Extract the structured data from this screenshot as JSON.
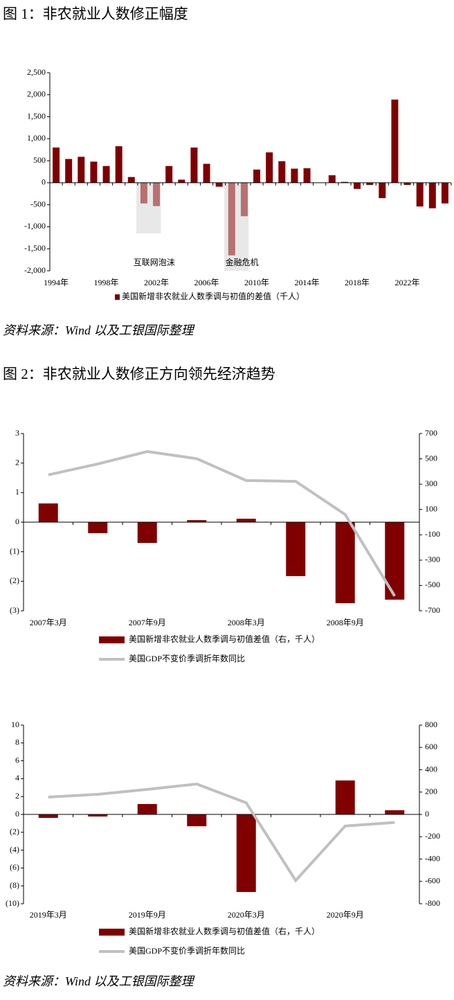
{
  "figure1_title": "图 1：非农就业人数修正幅度",
  "source1": "资料来源：Wind 以及工银国际整理",
  "figure2_title": "图 2：非农就业人数修正方向领先经济趋势",
  "source2": "资料来源：Wind 以及工银国际整理",
  "chart_data": [
    {
      "type": "bar",
      "categories": [
        "1994年",
        null,
        null,
        null,
        "1998年",
        null,
        null,
        null,
        "2002年",
        null,
        null,
        null,
        "2006年",
        null,
        null,
        null,
        "2010年",
        null,
        null,
        null,
        "2014年",
        null,
        null,
        null,
        "2018年",
        null,
        null,
        null,
        "2022年",
        null,
        null,
        null
      ],
      "series": [
        {
          "name": "美国新增非农就业人数季调与初值的差值（千人）",
          "color": "#7f0000",
          "colors": [
            "#7f0000",
            "#7f0000",
            "#7f0000",
            "#7f0000",
            "#7f0000",
            "#7f0000",
            "#7f0000",
            "#b87070",
            "#b87070",
            "#7f0000",
            "#7f0000",
            "#7f0000",
            "#7f0000",
            "#7f0000",
            "#b87070",
            "#b87070",
            "#7f0000",
            "#7f0000",
            "#7f0000",
            "#7f0000",
            "#7f0000",
            "#7f0000",
            "#7f0000",
            "#7f0000",
            "#7f0000",
            "#7f0000",
            "#7f0000",
            "#7f0000",
            "#7f0000",
            "#7f0000",
            "#7f0000",
            "#7f0000"
          ],
          "values": [
            800,
            540,
            590,
            480,
            380,
            830,
            130,
            -470,
            -530,
            380,
            70,
            800,
            430,
            -90,
            -1650,
            -760,
            300,
            690,
            490,
            320,
            330,
            0,
            170,
            20,
            -140,
            -50,
            -350,
            1890,
            -50,
            -540,
            -580,
            -470
          ]
        }
      ],
      "annotations": [
        {
          "text": "互联网泡沫",
          "y": -1150
        },
        {
          "text": "金融危机",
          "y": -2000
        }
      ],
      "ylim": [
        -2000,
        2500
      ],
      "yticks": [
        {
          "value": 2500,
          "label": "2,500"
        },
        {
          "value": 2000,
          "label": "2,000"
        },
        {
          "value": 1500,
          "label": "1,500"
        },
        {
          "value": 1000,
          "label": "1,000"
        },
        500,
        0,
        -500,
        {
          "value": -1000,
          "label": "-1,000"
        },
        {
          "value": -1500,
          "label": "-1,500"
        },
        {
          "value": -2000,
          "label": "-2,000"
        }
      ]
    },
    {
      "type": "combo",
      "categories": [
        "2007年3月",
        null,
        "2007年9月",
        null,
        "2008年3月",
        null,
        "2008年9月",
        null
      ],
      "series": [
        {
          "name": "美国新增非农就业人数季调与初值差值（右，千人）",
          "type": "bar",
          "axis": "y2",
          "color": "#800000",
          "values": [
            148,
            -87,
            -164,
            16,
            27,
            -426,
            -640,
            -612
          ]
        },
        {
          "name": "美国GDP不变价季调折年数同比",
          "type": "line",
          "color": "#c0c0c0",
          "values": [
            1.6,
            1.97,
            2.39,
            2.15,
            1.41,
            1.38,
            0.26,
            -2.5
          ]
        }
      ],
      "ylim": [
        -3,
        3
      ],
      "yticks": [
        3,
        2,
        1,
        0,
        {
          "value": -1,
          "label": "(1)"
        },
        {
          "value": -2,
          "label": "(2)"
        },
        {
          "value": -3,
          "label": "(3)"
        }
      ],
      "y2lim": [
        -700,
        700
      ],
      "y2ticks": [
        700,
        500,
        300,
        100,
        -100,
        -300,
        -500,
        -700
      ]
    },
    {
      "type": "combo",
      "categories": [
        "2019年3月",
        null,
        "2019年9月",
        null,
        "2020年3月",
        null,
        "2020年9月",
        null
      ],
      "series": [
        {
          "name": "美国新增非农就业人数季调与初值差值（右，千人）",
          "type": "bar",
          "axis": "y2",
          "color": "#800000",
          "values": [
            -31,
            -19,
            93,
            -106,
            -695,
            0,
            304,
            37
          ]
        },
        {
          "name": "美国GDP不变价季调折年数同比",
          "type": "line",
          "color": "#c0c0c0",
          "values": [
            1.94,
            2.25,
            2.8,
            3.4,
            1.3,
            -7.4,
            -1.3,
            -0.9
          ]
        }
      ],
      "ylim": [
        -10,
        10
      ],
      "yticks": [
        10,
        8,
        6,
        4,
        2,
        0,
        {
          "value": -2,
          "label": "(2)"
        },
        {
          "value": -4,
          "label": "(4)"
        },
        {
          "value": -6,
          "label": "(6)"
        },
        {
          "value": -8,
          "label": "(8)"
        },
        {
          "value": -10,
          "label": "(10)"
        }
      ],
      "y2lim": [
        -800,
        800
      ],
      "y2ticks": [
        800,
        600,
        400,
        200,
        0,
        -200,
        -400,
        -600,
        -800
      ]
    }
  ]
}
